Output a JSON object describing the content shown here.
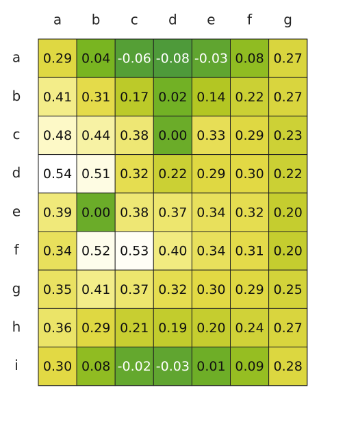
{
  "chart_data": {
    "type": "heatmap",
    "title": "",
    "xlabel": "",
    "ylabel": "",
    "columns": [
      "a",
      "b",
      "c",
      "d",
      "e",
      "f",
      "g"
    ],
    "rows": [
      "a",
      "b",
      "c",
      "d",
      "e",
      "f",
      "g",
      "h",
      "i"
    ],
    "values": [
      [
        0.29,
        0.04,
        -0.06,
        -0.08,
        -0.03,
        0.08,
        0.27
      ],
      [
        0.41,
        0.31,
        0.17,
        0.02,
        0.14,
        0.22,
        0.27
      ],
      [
        0.48,
        0.44,
        0.38,
        0.0,
        0.33,
        0.29,
        0.23
      ],
      [
        0.54,
        0.51,
        0.32,
        0.22,
        0.29,
        0.3,
        0.22
      ],
      [
        0.39,
        0.0,
        0.38,
        0.37,
        0.34,
        0.32,
        0.2
      ],
      [
        0.34,
        0.52,
        0.53,
        0.4,
        0.34,
        0.31,
        0.2
      ],
      [
        0.35,
        0.41,
        0.37,
        0.32,
        0.3,
        0.29,
        0.25
      ],
      [
        0.36,
        0.29,
        0.21,
        0.19,
        0.2,
        0.24,
        0.27
      ],
      [
        0.3,
        0.08,
        -0.02,
        -0.03,
        0.01,
        0.09,
        0.28
      ]
    ],
    "value_format": "0.00",
    "colormap": {
      "name": "green-yellow-white",
      "vmin": -0.08,
      "vmax": 0.54,
      "stops": [
        {
          "value": -0.08,
          "color": "#4e9a3a"
        },
        {
          "value": 0.04,
          "color": "#79b521"
        },
        {
          "value": 0.14,
          "color": "#b3c623"
        },
        {
          "value": 0.3,
          "color": "#e2d944"
        },
        {
          "value": 0.4,
          "color": "#f1eb80"
        },
        {
          "value": 0.48,
          "color": "#fdf9c7"
        },
        {
          "value": 0.54,
          "color": "#ffffff"
        }
      ]
    },
    "text_colors": {
      "light": "#ffffff",
      "dark": "#111111"
    },
    "light_text_below": 0.0,
    "legend": "none",
    "grid": true
  }
}
